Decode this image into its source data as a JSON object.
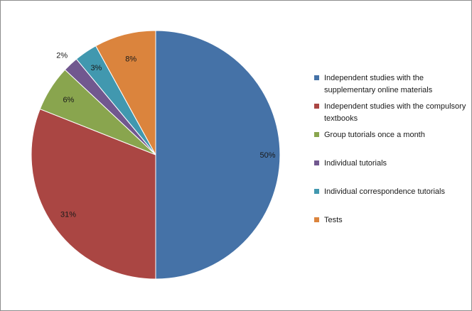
{
  "chart_data": {
    "type": "pie",
    "start_angle_deg": 0,
    "direction": "clockwise",
    "legend_position": "right",
    "slices": [
      {
        "label": "Independent studies with the supplementary online materials",
        "value": 50,
        "display": "50%",
        "color": "#4572A7"
      },
      {
        "label": "Independent studies with the compulsory textbooks",
        "value": 31,
        "display": "31%",
        "color": "#AA4643"
      },
      {
        "label": "Group tutorials once a month",
        "value": 6,
        "display": "6%",
        "color": "#89A54E"
      },
      {
        "label": "Individual tutorials",
        "value": 2,
        "display": "2%",
        "color": "#71588F"
      },
      {
        "label": "Individual correspondence tutorials",
        "value": 3,
        "display": "3%",
        "color": "#4198AF"
      },
      {
        "label": "Tests",
        "value": 8,
        "display": "8%",
        "color": "#DB843D"
      }
    ]
  }
}
